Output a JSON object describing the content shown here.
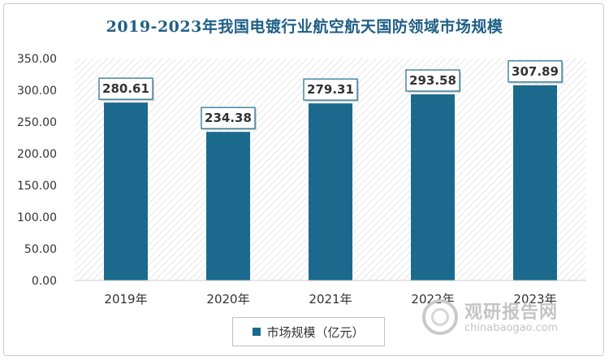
{
  "chart_data": {
    "type": "bar",
    "title": "2019-2023年我国电镀行业航空航天国防领域市场规模",
    "categories": [
      "2019年",
      "2020年",
      "2021年",
      "2022年",
      "2023年"
    ],
    "series": [
      {
        "name": "市场规模（亿元）",
        "values": [
          280.61,
          234.38,
          279.31,
          293.58,
          307.89
        ]
      }
    ],
    "data_labels": [
      "280.61",
      "234.38",
      "279.31",
      "293.58",
      "307.89"
    ],
    "y_ticks": [
      "0.00",
      "50.00",
      "100.00",
      "150.00",
      "200.00",
      "250.00",
      "300.00",
      "350.00"
    ],
    "ylim": [
      0,
      350
    ],
    "xlabel": "",
    "ylabel": "",
    "grid": false,
    "legend_position": "bottom",
    "colors": {
      "bar": "#1b6a8e",
      "title": "#1f5f86",
      "label_border": "#1b6a8e"
    }
  },
  "watermark": {
    "name_cn": "观研报告网",
    "url": "chinabaogao.com"
  }
}
